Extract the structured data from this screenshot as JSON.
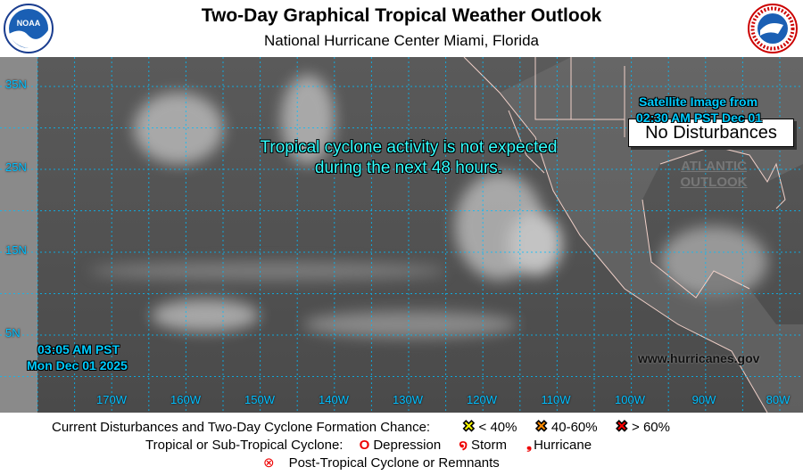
{
  "header": {
    "title": "Two-Day Graphical Tropical Weather Outlook",
    "subtitle": "National Hurricane Center  Miami, Florida",
    "left_logo": "NOAA",
    "right_logo": "NATIONAL WEATHER SERVICE"
  },
  "map": {
    "status_box": "No Disturbances",
    "satellite_line1": "Satellite Image from",
    "satellite_line2": "02:30 AM PST Dec 01",
    "message_line1": "Tropical cyclone activity is not expected",
    "message_line2": "during the next 48 hours.",
    "atlantic_line1": "ATLANTIC",
    "atlantic_line2": "OUTLOOK",
    "issued_time": "03:05 AM PST",
    "issued_date": "Mon Dec 01 2025",
    "website": "www.hurricanes.gov",
    "latitudes": [
      "35N",
      "25N",
      "15N",
      "5N"
    ],
    "longitudes": [
      "170W",
      "160W",
      "150W",
      "140W",
      "130W",
      "120W",
      "110W",
      "100W",
      "90W",
      "80W"
    ],
    "grid_color": "#00bfff"
  },
  "legend": {
    "row1_label": "Current Disturbances and Two-Day Cyclone Formation Chance:",
    "low": "< 40%",
    "mid": "40-60%",
    "high": "> 60%",
    "low_color": "#ffff00",
    "mid_color": "#ff8c00",
    "high_color": "#ff0000",
    "row2_label": "Tropical or Sub-Tropical Cyclone:",
    "depression": "Depression",
    "storm": "Storm",
    "hurricane": "Hurricane",
    "post_tropical": "Post-Tropical Cyclone or Remnants"
  }
}
